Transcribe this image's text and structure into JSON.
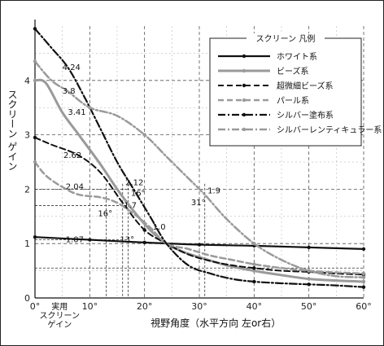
{
  "chart_data": {
    "type": "line",
    "xlabel": "視野角度（水平方向 左or右）",
    "ylabel": "スクリーン ゲイン",
    "xlim": [
      0,
      60
    ],
    "ylim": [
      0,
      5
    ],
    "x_ticks": [
      "0°",
      "10°",
      "20°",
      "30°",
      "40°",
      "50°",
      "60°"
    ],
    "y_ticks": [
      "0",
      "1",
      "2",
      "3",
      "4"
    ],
    "practical_gain_label": [
      "実用",
      "スクリーン",
      "ゲイン"
    ],
    "legend_title": "スクリーン 凡例",
    "legend_position": "top-right",
    "series": [
      {
        "name": "ホワイト系",
        "color": "#111111",
        "style": "solid",
        "width": 2.2,
        "x": [
          0,
          10,
          20,
          30,
          40,
          50,
          60
        ],
        "y": [
          1.12,
          1.07,
          1.02,
          0.98,
          0.96,
          0.93,
          0.9
        ]
      },
      {
        "name": "ビーズ系",
        "color": "#9a9a9a",
        "style": "solid",
        "width": 3,
        "x": [
          0,
          2,
          5,
          8,
          12,
          15,
          18,
          21,
          24,
          27,
          30,
          35,
          40,
          45,
          50,
          55,
          60
        ],
        "y": [
          4.0,
          3.95,
          3.41,
          3.0,
          2.45,
          2.0,
          1.6,
          1.25,
          1.0,
          0.85,
          0.75,
          0.6,
          0.5,
          0.42,
          0.35,
          0.32,
          0.3
        ]
      },
      {
        "name": "超微細ビーズ系",
        "color": "#111111",
        "style": "dash",
        "width": 2,
        "x": [
          0,
          3,
          8,
          12,
          16,
          20,
          24,
          28,
          32,
          36,
          40,
          45,
          50,
          55,
          60
        ],
        "y": [
          2.95,
          2.82,
          2.62,
          2.3,
          1.75,
          1.25,
          1.0,
          0.8,
          0.68,
          0.6,
          0.55,
          0.5,
          0.48,
          0.45,
          0.43
        ]
      },
      {
        "name": "パール系",
        "color": "#9a9a9a",
        "style": "dash",
        "width": 2.5,
        "x": [
          0,
          2,
          5,
          8,
          12,
          15,
          18,
          21,
          24,
          28,
          32,
          36,
          40,
          45,
          50,
          55,
          60
        ],
        "y": [
          2.5,
          2.25,
          2.04,
          1.9,
          1.85,
          1.75,
          1.55,
          1.3,
          1.0,
          0.9,
          0.78,
          0.7,
          0.62,
          0.55,
          0.5,
          0.47,
          0.45
        ]
      },
      {
        "name": "シルバー塗布系",
        "color": "#111111",
        "style": "dashdot",
        "width": 2.2,
        "x": [
          0,
          3,
          6,
          9,
          12,
          15,
          18,
          21,
          24,
          28,
          32,
          36,
          40,
          45,
          50,
          55,
          60
        ],
        "y": [
          4.95,
          4.6,
          4.24,
          3.7,
          3.1,
          2.5,
          2.0,
          1.5,
          1.0,
          0.6,
          0.45,
          0.35,
          0.3,
          0.27,
          0.25,
          0.23,
          0.2
        ]
      },
      {
        "name": "シルバーレンティキュラー系",
        "color": "#9a9a9a",
        "style": "dashdot",
        "width": 2.5,
        "x": [
          0,
          3,
          6,
          10,
          15,
          20,
          24,
          28,
          31,
          35,
          40,
          45,
          50,
          55,
          60
        ],
        "y": [
          4.35,
          4.0,
          3.8,
          3.5,
          3.35,
          3.0,
          2.6,
          2.2,
          1.9,
          1.45,
          1.0,
          0.7,
          0.5,
          0.4,
          0.38
        ]
      }
    ],
    "annotations": [
      {
        "text": "4.24",
        "x": 5.0,
        "y": 4.24
      },
      {
        "text": "3.8",
        "x": 5.0,
        "y": 3.8
      },
      {
        "text": "3.41",
        "x": 6.0,
        "y": 3.41
      },
      {
        "text": "2.62",
        "x": 5.2,
        "y": 2.62
      },
      {
        "text": "2.04",
        "x": 5.6,
        "y": 2.04
      },
      {
        "text": "1.07",
        "x": 5.6,
        "y": 1.07
      },
      {
        "text": "2.12",
        "x": 16.5,
        "y": 2.12
      },
      {
        "text": "16°",
        "x": 17.5,
        "y": 1.92
      },
      {
        "text": "16°",
        "x": 11.5,
        "y": 1.55
      },
      {
        "text": "1.7",
        "x": 16.2,
        "y": 1.7
      },
      {
        "text": "13°",
        "x": 15.5,
        "y": 1.07
      },
      {
        "text": "1.0",
        "x": 21.5,
        "y": 1.3
      },
      {
        "text": "1.9",
        "x": 31.5,
        "y": 1.97
      },
      {
        "text": "31°",
        "x": 28.5,
        "y": 1.75
      }
    ]
  }
}
